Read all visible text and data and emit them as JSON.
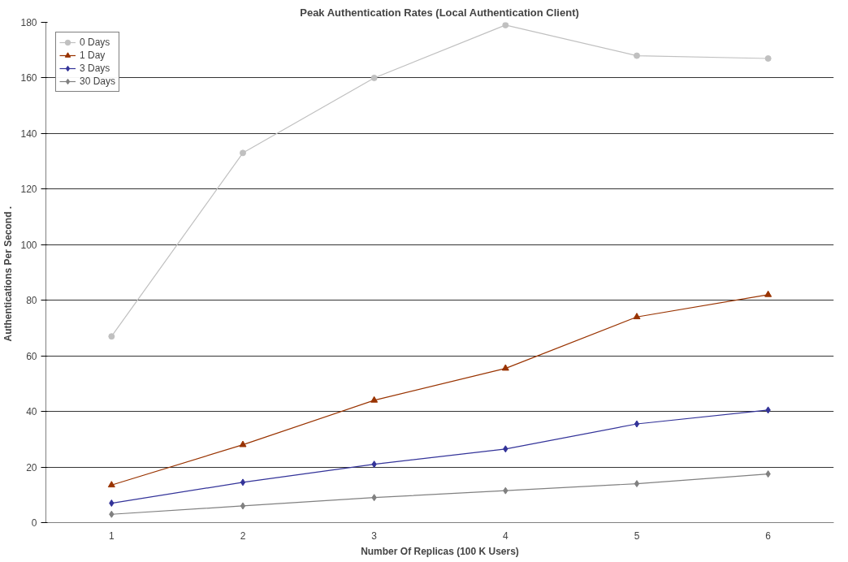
{
  "chart_data": {
    "type": "line",
    "title": "Peak Authentication Rates (Local Authentication Client)",
    "xlabel": "Number Of Replicas (100 K Users)",
    "ylabel": "Authentications Per Second  .",
    "categories": [
      "1",
      "2",
      "3",
      "4",
      "5",
      "6"
    ],
    "series": [
      {
        "name": "0 Days",
        "color": "#c0c0c0",
        "marker": "circle",
        "values": [
          67,
          133,
          160,
          179,
          168,
          167
        ]
      },
      {
        "name": "1 Day",
        "color": "#993300",
        "marker": "triangle",
        "values": [
          13.5,
          28,
          44,
          55.5,
          74,
          82
        ]
      },
      {
        "name": "3 Days",
        "color": "#333399",
        "marker": "diamond",
        "values": [
          7,
          14.5,
          21,
          26.5,
          35.5,
          40.5
        ]
      },
      {
        "name": "30 Days",
        "color": "#808080",
        "marker": "diamond",
        "values": [
          3,
          6,
          9,
          11.5,
          14,
          17.5
        ]
      }
    ],
    "ylim": [
      0,
      180
    ],
    "yticks": [
      0,
      20,
      40,
      60,
      80,
      100,
      120,
      140,
      160,
      180
    ],
    "grid": "y",
    "legend": "top left",
    "line_style": "solid"
  }
}
